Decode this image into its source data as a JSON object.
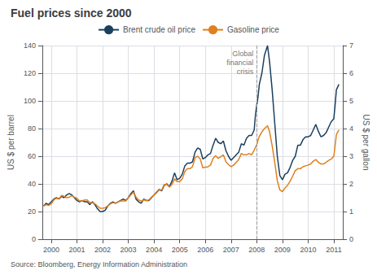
{
  "chart_data": {
    "type": "line",
    "title": "Fuel prices since 2000",
    "source": "Source: Bloomberg, Energy Information Administration",
    "ylabel": "US $ per barrel",
    "y2label": "US $ per gallon",
    "annotations": [
      {
        "text": "Global\nfinancial\ncrisis",
        "x": 2008.0
      }
    ],
    "legend": "top",
    "grid": true,
    "xlim": [
      1999.65,
      2011.35
    ],
    "xticks": [
      2000,
      2001,
      2002,
      2003,
      2004,
      2005,
      2006,
      2007,
      2008,
      2009,
      2010,
      2011
    ],
    "ylim": [
      0,
      140
    ],
    "yticks": [
      0,
      20,
      40,
      60,
      80,
      100,
      120,
      140
    ],
    "y2lim": [
      0,
      7
    ],
    "y2ticks": [
      0,
      1,
      2,
      3,
      4,
      5,
      6,
      7
    ],
    "x": [
      1999.7,
      1999.8,
      1999.9,
      2000.0,
      2000.1,
      2000.2,
      2000.3,
      2000.4,
      2000.5,
      2000.6,
      2000.7,
      2000.8,
      2000.9,
      2001.0,
      2001.1,
      2001.2,
      2001.3,
      2001.4,
      2001.5,
      2001.6,
      2001.7,
      2001.8,
      2001.9,
      2002.0,
      2002.1,
      2002.2,
      2002.3,
      2002.4,
      2002.5,
      2002.6,
      2002.7,
      2002.8,
      2002.9,
      2003.0,
      2003.1,
      2003.2,
      2003.3,
      2003.4,
      2003.5,
      2003.6,
      2003.7,
      2003.8,
      2003.9,
      2004.0,
      2004.1,
      2004.2,
      2004.3,
      2004.4,
      2004.5,
      2004.6,
      2004.7,
      2004.8,
      2004.9,
      2005.0,
      2005.1,
      2005.2,
      2005.3,
      2005.4,
      2005.5,
      2005.6,
      2005.7,
      2005.8,
      2005.9,
      2006.0,
      2006.1,
      2006.2,
      2006.3,
      2006.4,
      2006.5,
      2006.6,
      2006.7,
      2006.8,
      2006.9,
      2007.0,
      2007.1,
      2007.2,
      2007.3,
      2007.4,
      2007.5,
      2007.6,
      2007.7,
      2007.8,
      2007.9,
      2007.95,
      2008.0,
      2008.05,
      2008.1,
      2008.2,
      2008.3,
      2008.42,
      2008.5,
      2008.6,
      2008.7,
      2008.8,
      2008.9,
      2009.0,
      2009.1,
      2009.2,
      2009.3,
      2009.4,
      2009.5,
      2009.6,
      2009.7,
      2009.8,
      2009.9,
      2010.0,
      2010.1,
      2010.2,
      2010.3,
      2010.4,
      2010.5,
      2010.6,
      2010.7,
      2010.8,
      2010.9,
      2011.0,
      2011.05,
      2011.1,
      2011.2
    ],
    "series": [
      {
        "name": "Brent crude oil price",
        "color": "#1c3f5e",
        "axis": "y",
        "values": [
          24,
          26,
          25,
          27,
          29,
          30,
          29,
          31,
          30,
          32,
          33,
          32,
          30,
          28,
          27,
          28,
          27,
          27,
          25,
          27,
          25,
          22,
          20,
          20,
          21,
          24,
          26,
          27,
          26,
          27,
          28,
          29,
          28,
          30,
          33,
          35,
          29,
          27,
          26,
          29,
          28,
          28,
          30,
          32,
          34,
          36,
          35,
          39,
          40,
          38,
          42,
          48,
          43,
          44,
          47,
          53,
          55,
          55,
          56,
          63,
          66,
          65,
          58,
          59,
          61,
          62,
          68,
          73,
          70,
          69,
          71,
          64,
          60,
          57,
          59,
          61,
          63,
          69,
          68,
          73,
          75,
          75,
          79,
          90,
          97,
          103,
          112,
          120,
          133,
          140,
          128,
          108,
          84,
          60,
          46,
          43,
          47,
          48,
          52,
          57,
          60,
          68,
          68,
          72,
          74,
          74,
          75,
          79,
          83,
          78,
          74,
          75,
          77,
          81,
          85,
          87,
          97,
          108,
          112
        ]
      },
      {
        "name": "Gasoline price",
        "color": "#e08020",
        "axis": "y2",
        "values": [
          1.2,
          1.25,
          1.22,
          1.28,
          1.42,
          1.48,
          1.46,
          1.58,
          1.55,
          1.5,
          1.52,
          1.58,
          1.52,
          1.48,
          1.38,
          1.38,
          1.42,
          1.42,
          1.32,
          1.32,
          1.28,
          1.2,
          1.12,
          1.12,
          1.14,
          1.2,
          1.28,
          1.32,
          1.3,
          1.35,
          1.38,
          1.38,
          1.38,
          1.5,
          1.6,
          1.7,
          1.52,
          1.42,
          1.38,
          1.42,
          1.4,
          1.42,
          1.52,
          1.6,
          1.68,
          1.78,
          1.78,
          1.98,
          1.98,
          1.88,
          1.98,
          2.18,
          2.08,
          2.08,
          2.18,
          2.45,
          2.55,
          2.55,
          2.62,
          2.95,
          3.0,
          2.9,
          2.58,
          2.6,
          2.62,
          2.68,
          2.92,
          3.02,
          2.92,
          2.98,
          3.05,
          2.8,
          2.7,
          2.62,
          2.68,
          2.78,
          2.88,
          3.1,
          3.05,
          3.05,
          3.1,
          3.05,
          3.22,
          3.32,
          3.42,
          3.58,
          3.72,
          3.88,
          4.0,
          4.1,
          3.88,
          3.38,
          2.78,
          2.12,
          1.78,
          1.72,
          1.85,
          1.95,
          2.1,
          2.28,
          2.48,
          2.55,
          2.55,
          2.62,
          2.65,
          2.68,
          2.72,
          2.82,
          2.88,
          2.78,
          2.72,
          2.72,
          2.78,
          2.85,
          2.9,
          3.0,
          3.38,
          3.78,
          3.95
        ]
      }
    ]
  }
}
